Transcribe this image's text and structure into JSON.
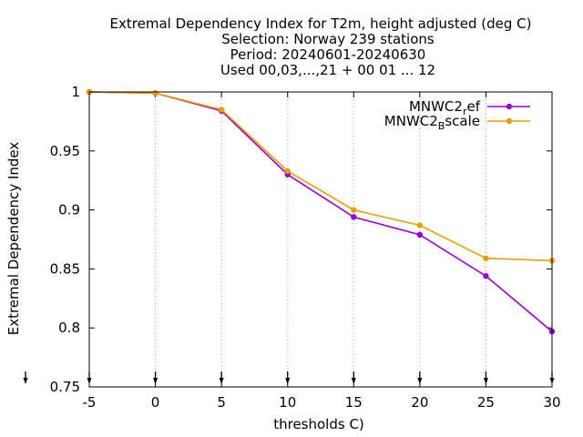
{
  "chart_data": {
    "type": "line",
    "title_lines": [
      "Extremal Dependency Index  for T2m, height adjusted (deg C)",
      "Selection: Norway    239 stations",
      "Period: 20240601-20240630",
      "Used 00,03,...,21 + 00 01 ... 12"
    ],
    "xlabel": "thresholds C)",
    "ylabel": "Extremal Dependency Index",
    "xlim": [
      -5,
      30
    ],
    "ylim": [
      0.75,
      1.0
    ],
    "x_ticks": [
      -5,
      0,
      5,
      10,
      15,
      20,
      25,
      30
    ],
    "x_tick_labels": [
      "-5",
      "0",
      "5",
      "10",
      "15",
      "20",
      "25",
      "30"
    ],
    "y_ticks": [
      0.75,
      0.8,
      0.85,
      0.9,
      0.95,
      1.0
    ],
    "y_tick_labels": [
      "0.75",
      "0.8",
      "0.85",
      "0.9",
      "0.95",
      "1"
    ],
    "grid": "vertical dotted",
    "legend_position": "top-right",
    "x": [
      -5,
      0,
      5,
      10,
      15,
      20,
      25,
      30
    ],
    "series": [
      {
        "name": "MNWC2_ref",
        "legend_main": "MNWC2",
        "legend_sub": "r",
        "legend_tail": "ef",
        "color": "#9400d3",
        "values": [
          1.0,
          0.999,
          0.984,
          0.93,
          0.894,
          0.879,
          0.844,
          0.797
        ]
      },
      {
        "name": "MNWC2_Bscale",
        "legend_main": "MNWC2",
        "legend_sub": "B",
        "legend_tail": "scale",
        "color": "#e69f00",
        "values": [
          1.0,
          0.999,
          0.985,
          0.933,
          0.9,
          0.887,
          0.859,
          0.857
        ]
      }
    ]
  }
}
